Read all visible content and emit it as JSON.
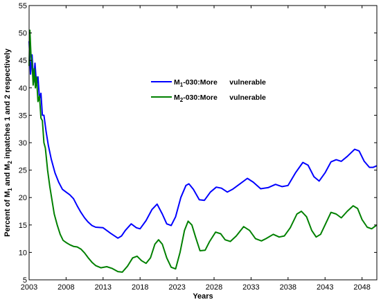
{
  "chart_data": {
    "type": "line",
    "xlabel": "Years",
    "ylabel_parts": {
      "a": "Percent of M",
      "a_sub": "1",
      "b": " and M",
      "b_sub": "2",
      "c": " inpatches 1 and 2 respectively"
    },
    "xlim": [
      2003,
      2050
    ],
    "ylim": [
      5,
      55
    ],
    "xticks": [
      2003,
      2008,
      2013,
      2018,
      2023,
      2028,
      2033,
      2038,
      2043,
      2048
    ],
    "yticks": [
      5,
      10,
      15,
      20,
      25,
      30,
      35,
      40,
      45,
      50,
      55
    ],
    "grid": false,
    "legend_position": "upper-middle",
    "series": [
      {
        "legend": {
          "prefix": "M",
          "sub": "1",
          "text": "-030:More      vulnerable"
        },
        "color": "#0000ff",
        "points": [
          [
            2003.0,
            48.5
          ],
          [
            2003.2,
            42.5
          ],
          [
            2003.4,
            46.0
          ],
          [
            2003.6,
            41.0
          ],
          [
            2003.8,
            44.5
          ],
          [
            2004.0,
            40.5
          ],
          [
            2004.2,
            42.0
          ],
          [
            2004.4,
            38.0
          ],
          [
            2004.6,
            39.0
          ],
          [
            2004.8,
            35.0
          ],
          [
            2005.0,
            35.0
          ],
          [
            2005.3,
            32.0
          ],
          [
            2005.6,
            29.5
          ],
          [
            2006.0,
            27.0
          ],
          [
            2006.5,
            24.5
          ],
          [
            2007.0,
            22.8
          ],
          [
            2007.5,
            21.5
          ],
          [
            2008.0,
            21.0
          ],
          [
            2008.5,
            20.5
          ],
          [
            2009.0,
            19.8
          ],
          [
            2009.5,
            18.5
          ],
          [
            2010.0,
            17.3
          ],
          [
            2010.5,
            16.3
          ],
          [
            2011.0,
            15.5
          ],
          [
            2011.5,
            14.9
          ],
          [
            2012.0,
            14.6
          ],
          [
            2013.0,
            14.5
          ],
          [
            2014.0,
            13.5
          ],
          [
            2015.0,
            12.6
          ],
          [
            2015.5,
            13.0
          ],
          [
            2016.0,
            14.0
          ],
          [
            2016.8,
            15.2
          ],
          [
            2017.5,
            14.5
          ],
          [
            2018.0,
            14.3
          ],
          [
            2018.8,
            15.8
          ],
          [
            2019.6,
            17.8
          ],
          [
            2020.3,
            18.8
          ],
          [
            2021.0,
            17.0
          ],
          [
            2021.6,
            15.2
          ],
          [
            2022.2,
            14.9
          ],
          [
            2022.8,
            16.5
          ],
          [
            2023.5,
            20.0
          ],
          [
            2024.2,
            22.2
          ],
          [
            2024.6,
            22.5
          ],
          [
            2025.2,
            21.5
          ],
          [
            2026.0,
            19.6
          ],
          [
            2026.7,
            19.5
          ],
          [
            2027.5,
            21.0
          ],
          [
            2028.3,
            21.9
          ],
          [
            2029.0,
            21.7
          ],
          [
            2029.8,
            21.0
          ],
          [
            2030.5,
            21.5
          ],
          [
            2031.5,
            22.5
          ],
          [
            2032.5,
            23.5
          ],
          [
            2033.3,
            22.8
          ],
          [
            2034.3,
            21.6
          ],
          [
            2035.3,
            21.8
          ],
          [
            2036.3,
            22.4
          ],
          [
            2037.2,
            22.0
          ],
          [
            2038.0,
            22.2
          ],
          [
            2039.0,
            24.5
          ],
          [
            2040.0,
            26.4
          ],
          [
            2040.7,
            25.9
          ],
          [
            2041.5,
            23.8
          ],
          [
            2042.2,
            23.0
          ],
          [
            2043.0,
            24.5
          ],
          [
            2043.8,
            26.5
          ],
          [
            2044.5,
            26.9
          ],
          [
            2045.2,
            26.6
          ],
          [
            2046.0,
            27.5
          ],
          [
            2047.0,
            28.8
          ],
          [
            2047.6,
            28.5
          ],
          [
            2048.3,
            26.6
          ],
          [
            2049.0,
            25.5
          ],
          [
            2049.5,
            25.5
          ],
          [
            2050.0,
            25.8
          ]
        ]
      },
      {
        "legend": {
          "prefix": "M",
          "sub": "2",
          "text": "-030:More      vulnerable"
        },
        "color": "#008000",
        "points": [
          [
            2003.0,
            44.0
          ],
          [
            2003.1,
            50.5
          ],
          [
            2003.25,
            46.0
          ],
          [
            2003.4,
            44.5
          ],
          [
            2003.55,
            40.5
          ],
          [
            2003.7,
            43.5
          ],
          [
            2003.85,
            40.0
          ],
          [
            2004.0,
            42.0
          ],
          [
            2004.2,
            37.5
          ],
          [
            2004.4,
            38.5
          ],
          [
            2004.6,
            34.5
          ],
          [
            2004.8,
            34.0
          ],
          [
            2005.0,
            30.0
          ],
          [
            2005.2,
            29.0
          ],
          [
            2005.5,
            25.0
          ],
          [
            2005.8,
            22.0
          ],
          [
            2006.1,
            19.5
          ],
          [
            2006.4,
            17.0
          ],
          [
            2006.8,
            15.0
          ],
          [
            2007.2,
            13.3
          ],
          [
            2007.6,
            12.2
          ],
          [
            2008.0,
            11.8
          ],
          [
            2008.5,
            11.4
          ],
          [
            2009.0,
            11.1
          ],
          [
            2009.5,
            11.0
          ],
          [
            2010.0,
            10.6
          ],
          [
            2010.5,
            9.9
          ],
          [
            2011.0,
            9.0
          ],
          [
            2011.5,
            8.2
          ],
          [
            2012.0,
            7.6
          ],
          [
            2012.7,
            7.2
          ],
          [
            2013.5,
            7.4
          ],
          [
            2014.2,
            7.1
          ],
          [
            2015.0,
            6.5
          ],
          [
            2015.6,
            6.4
          ],
          [
            2016.3,
            7.5
          ],
          [
            2017.0,
            9.0
          ],
          [
            2017.6,
            9.3
          ],
          [
            2018.2,
            8.5
          ],
          [
            2018.8,
            8.0
          ],
          [
            2019.4,
            9.0
          ],
          [
            2020.0,
            11.5
          ],
          [
            2020.5,
            12.3
          ],
          [
            2021.0,
            11.5
          ],
          [
            2021.6,
            9.0
          ],
          [
            2022.2,
            7.3
          ],
          [
            2022.8,
            7.0
          ],
          [
            2023.4,
            10.0
          ],
          [
            2024.0,
            14.0
          ],
          [
            2024.5,
            15.7
          ],
          [
            2025.0,
            15.0
          ],
          [
            2025.5,
            12.8
          ],
          [
            2026.1,
            10.3
          ],
          [
            2026.8,
            10.4
          ],
          [
            2027.4,
            12.0
          ],
          [
            2028.2,
            13.7
          ],
          [
            2028.9,
            13.4
          ],
          [
            2029.5,
            12.3
          ],
          [
            2030.2,
            12.0
          ],
          [
            2031.0,
            13.0
          ],
          [
            2032.0,
            14.7
          ],
          [
            2032.8,
            14.0
          ],
          [
            2033.6,
            12.5
          ],
          [
            2034.4,
            12.1
          ],
          [
            2035.0,
            12.5
          ],
          [
            2036.0,
            13.3
          ],
          [
            2036.8,
            12.8
          ],
          [
            2037.5,
            13.0
          ],
          [
            2038.3,
            14.5
          ],
          [
            2039.2,
            17.0
          ],
          [
            2039.8,
            17.5
          ],
          [
            2040.5,
            16.5
          ],
          [
            2041.2,
            14.0
          ],
          [
            2041.8,
            12.8
          ],
          [
            2042.4,
            13.3
          ],
          [
            2043.0,
            15.0
          ],
          [
            2043.8,
            17.3
          ],
          [
            2044.5,
            17.0
          ],
          [
            2045.2,
            16.3
          ],
          [
            2046.0,
            17.5
          ],
          [
            2046.8,
            18.5
          ],
          [
            2047.4,
            18.0
          ],
          [
            2048.0,
            16.0
          ],
          [
            2048.7,
            14.6
          ],
          [
            2049.3,
            14.3
          ],
          [
            2050.0,
            15.0
          ]
        ]
      }
    ]
  }
}
